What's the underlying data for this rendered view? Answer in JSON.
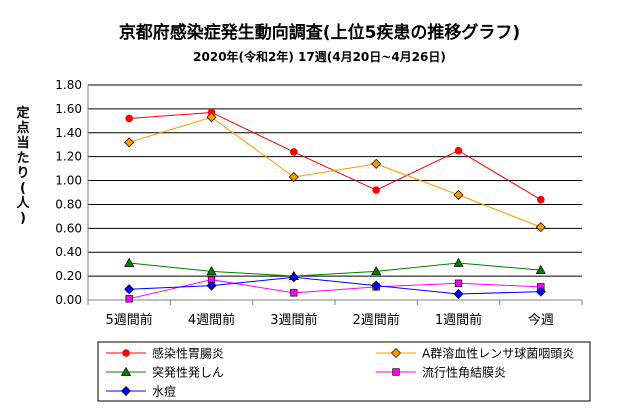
{
  "chart_data": {
    "type": "line",
    "title": "京都府感染症発生動向調査(上位5疾患の推移グラフ)",
    "subtitle": "2020年(令和2年) 17週(4月20日~4月26日)",
    "ylabel": "定点当たり(人)",
    "xlabel": "",
    "ylim": [
      0,
      1.8
    ],
    "yticks": [
      "0.00",
      "0.20",
      "0.40",
      "0.60",
      "0.80",
      "1.00",
      "1.20",
      "1.40",
      "1.60",
      "1.80"
    ],
    "categories": [
      "5週間前",
      "4週間前",
      "3週間前",
      "2週間前",
      "1週間前",
      "今週"
    ],
    "grid": true,
    "legend_position": "bottom",
    "series": [
      {
        "name": "感染性胃腸炎",
        "color": "#ff0000",
        "marker": "circle",
        "values": [
          1.52,
          1.57,
          1.24,
          0.92,
          1.25,
          0.84
        ]
      },
      {
        "name": "A群溶血性レンサ球菌咽頭炎",
        "color": "#ff9900",
        "marker": "diamond",
        "values": [
          1.32,
          1.53,
          1.03,
          1.14,
          0.88,
          0.61
        ]
      },
      {
        "name": "突発性発しん",
        "color": "#008000",
        "marker": "triangle",
        "values": [
          0.31,
          0.24,
          0.2,
          0.24,
          0.31,
          0.25
        ]
      },
      {
        "name": "流行性角結膜炎",
        "color": "#ff00ff",
        "marker": "square",
        "values": [
          0.01,
          0.17,
          0.06,
          0.11,
          0.14,
          0.11
        ]
      },
      {
        "name": "水痘",
        "color": "#0000ff",
        "marker": "diamond",
        "values": [
          0.09,
          0.12,
          0.19,
          0.12,
          0.05,
          0.07
        ]
      }
    ]
  }
}
